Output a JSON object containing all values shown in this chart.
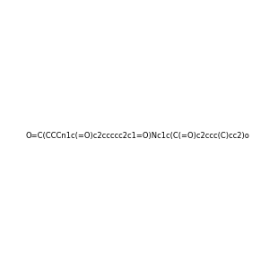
{
  "smiles": "O=C(CCCn1c(=O)c2ccccc2c1=O)Nc1c(C(=O)c2ccc(C)cc2)oc2ccccc12",
  "image_size": 300,
  "background_color": "#f0f0f0",
  "title": ""
}
